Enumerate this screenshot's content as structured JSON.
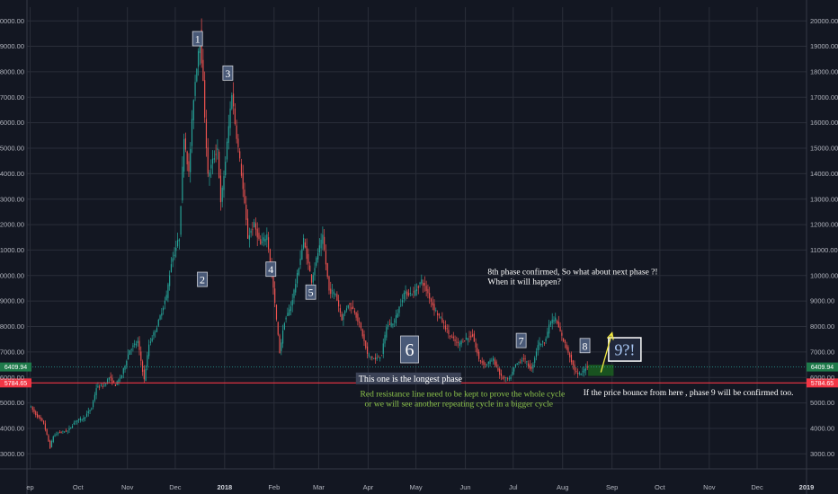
{
  "chart_data": {
    "type": "candlestick",
    "y_axis": {
      "ticks": [
        "3000.00",
        "4000.00",
        "5000.00",
        "6000.00",
        "7000.00",
        "8000.00",
        "9000.00",
        "10000.00",
        "11000.00",
        "12000.00",
        "13000.00",
        "14000.00",
        "15000.00",
        "16000.00",
        "17000.00",
        "18000.00",
        "19000.00",
        "20000.00"
      ],
      "ylim": [
        2500,
        20500
      ],
      "both_sides": true
    },
    "x_axis": {
      "ticks": [
        {
          "label": "ep",
          "date": "2017-09-01",
          "bold": false
        },
        {
          "label": "Oct",
          "date": "2017-10-01",
          "bold": false
        },
        {
          "label": "Nov",
          "date": "2017-11-01",
          "bold": false
        },
        {
          "label": "Dec",
          "date": "2017-12-01",
          "bold": false
        },
        {
          "label": "2018",
          "date": "2018-01-01",
          "bold": true
        },
        {
          "label": "Feb",
          "date": "2018-02-01",
          "bold": false
        },
        {
          "label": "Mar",
          "date": "2018-03-01",
          "bold": false
        },
        {
          "label": "Apr",
          "date": "2018-04-01",
          "bold": false
        },
        {
          "label": "May",
          "date": "2018-05-01",
          "bold": false
        },
        {
          "label": "Jun",
          "date": "2018-06-01",
          "bold": false
        },
        {
          "label": "Jul",
          "date": "2018-07-01",
          "bold": false
        },
        {
          "label": "Aug",
          "date": "2018-08-01",
          "bold": false
        },
        {
          "label": "Sep",
          "date": "2018-09-01",
          "bold": false
        },
        {
          "label": "Oct",
          "date": "2018-10-01",
          "bold": false
        },
        {
          "label": "Nov",
          "date": "2018-11-01",
          "bold": false
        },
        {
          "label": "Dec",
          "date": "2018-12-01",
          "bold": false
        },
        {
          "label": "2019",
          "date": "2019-01-01",
          "bold": true
        }
      ],
      "range": [
        "2017-08-30",
        "2019-01-01"
      ]
    },
    "price_path": [
      [
        "2017-09-01",
        4900
      ],
      [
        "2017-09-05",
        4550
      ],
      [
        "2017-09-10",
        4200
      ],
      [
        "2017-09-14",
        3250
      ],
      [
        "2017-09-16",
        3700
      ],
      [
        "2017-09-20",
        3850
      ],
      [
        "2017-09-25",
        3900
      ],
      [
        "2017-09-30",
        4300
      ],
      [
        "2017-10-05",
        4400
      ],
      [
        "2017-10-10",
        4800
      ],
      [
        "2017-10-13",
        5600
      ],
      [
        "2017-10-18",
        5700
      ],
      [
        "2017-10-21",
        6000
      ],
      [
        "2017-10-25",
        5700
      ],
      [
        "2017-10-29",
        6100
      ],
      [
        "2017-11-03",
        7100
      ],
      [
        "2017-11-08",
        7400
      ],
      [
        "2017-11-12",
        5900
      ],
      [
        "2017-11-15",
        7300
      ],
      [
        "2017-11-20",
        8000
      ],
      [
        "2017-11-26",
        9200
      ],
      [
        "2017-11-29",
        10500
      ],
      [
        "2017-12-04",
        11500
      ],
      [
        "2017-12-07",
        15500
      ],
      [
        "2017-12-10",
        14000
      ],
      [
        "2017-12-13",
        17000
      ],
      [
        "2017-12-17",
        19500
      ],
      [
        "2017-12-19",
        17500
      ],
      [
        "2017-12-22",
        13900
      ],
      [
        "2017-12-25",
        14500
      ],
      [
        "2017-12-28",
        15000
      ],
      [
        "2017-12-30",
        12800
      ],
      [
        "2018-01-02",
        14500
      ],
      [
        "2018-01-06",
        17200
      ],
      [
        "2018-01-08",
        16000
      ],
      [
        "2018-01-12",
        14000
      ],
      [
        "2018-01-16",
        11500
      ],
      [
        "2018-01-20",
        12000
      ],
      [
        "2018-01-24",
        11200
      ],
      [
        "2018-01-28",
        11600
      ],
      [
        "2018-02-01",
        9500
      ],
      [
        "2018-02-05",
        7000
      ],
      [
        "2018-02-08",
        8200
      ],
      [
        "2018-02-12",
        8800
      ],
      [
        "2018-02-16",
        10000
      ],
      [
        "2018-02-20",
        11400
      ],
      [
        "2018-02-25",
        9800
      ],
      [
        "2018-03-01",
        10900
      ],
      [
        "2018-03-04",
        11500
      ],
      [
        "2018-03-08",
        9400
      ],
      [
        "2018-03-12",
        9300
      ],
      [
        "2018-03-16",
        8300
      ],
      [
        "2018-03-20",
        8900
      ],
      [
        "2018-03-24",
        8600
      ],
      [
        "2018-03-28",
        7900
      ],
      [
        "2018-04-01",
        6900
      ],
      [
        "2018-04-06",
        6700
      ],
      [
        "2018-04-10",
        6900
      ],
      [
        "2018-04-13",
        8000
      ],
      [
        "2018-04-18",
        8200
      ],
      [
        "2018-04-24",
        9300
      ],
      [
        "2018-04-30",
        9300
      ],
      [
        "2018-05-05",
        9800
      ],
      [
        "2018-05-09",
        9300
      ],
      [
        "2018-05-13",
        8700
      ],
      [
        "2018-05-18",
        8200
      ],
      [
        "2018-05-23",
        7600
      ],
      [
        "2018-05-28",
        7300
      ],
      [
        "2018-06-01",
        7500
      ],
      [
        "2018-06-06",
        7650
      ],
      [
        "2018-06-10",
        6700
      ],
      [
        "2018-06-14",
        6500
      ],
      [
        "2018-06-19",
        6700
      ],
      [
        "2018-06-24",
        6000
      ],
      [
        "2018-06-29",
        5900
      ],
      [
        "2018-07-03",
        6500
      ],
      [
        "2018-07-08",
        6750
      ],
      [
        "2018-07-13",
        6300
      ],
      [
        "2018-07-17",
        7300
      ],
      [
        "2018-07-21",
        7400
      ],
      [
        "2018-07-25",
        8200
      ],
      [
        "2018-07-28",
        8300
      ],
      [
        "2018-08-01",
        7600
      ],
      [
        "2018-08-05",
        7000
      ],
      [
        "2018-08-09",
        6300
      ],
      [
        "2018-08-11",
        6100
      ],
      [
        "2018-08-14",
        6200
      ],
      [
        "2018-08-16",
        6410
      ]
    ],
    "current_price": {
      "value": 6409.94,
      "label": "6409.94"
    },
    "support_line": {
      "value": 5784.65,
      "label": "5784.65",
      "color": "#f23645"
    },
    "annotations": {
      "phase_labels": [
        {
          "text": "1",
          "date": "2017-12-15",
          "y": 19300
        },
        {
          "text": "2",
          "date": "2017-12-18",
          "y": 9850
        },
        {
          "text": "3",
          "date": "2018-01-03",
          "y": 17950
        },
        {
          "text": "4",
          "date": "2018-01-30",
          "y": 10250
        },
        {
          "text": "5",
          "date": "2018-02-24",
          "y": 9350
        },
        {
          "text": "6",
          "date": "2018-04-27",
          "y": 7100
        },
        {
          "text": "7",
          "date": "2018-07-06",
          "y": 7450
        },
        {
          "text": "8",
          "date": "2018-08-15",
          "y": 7250
        }
      ],
      "next_phase": {
        "text": "9?!",
        "date": "2018-09-09",
        "y": 7100
      },
      "text_blocks": [
        {
          "id": "confirmed",
          "lines": [
            "8th phase confirmed, So what about next phase ?!",
            "When it will happen?"
          ],
          "date": "2018-06-15",
          "y": 10050,
          "color": "#ffffff"
        },
        {
          "id": "longest",
          "lines": [
            "This one is the longest phase"
          ],
          "date": "2018-03-26",
          "y": 5840,
          "color": "#ffffff"
        },
        {
          "id": "resistance",
          "lines": [
            "Red resistance line need to be kept to prove the whole cycle",
            "or we will see another repeating cycle in a bigger cycle"
          ],
          "date": "2018-03-27",
          "y": 5250,
          "color": "#8bc34a"
        },
        {
          "id": "bounce",
          "lines": [
            "If the price bounce from here , phase 9 will be confirmed too."
          ],
          "date": "2018-08-14",
          "y": 5300,
          "color": "#ffffff"
        }
      ],
      "arrow": {
        "from": [
          "2018-08-25",
          6200
        ],
        "to": [
          "2018-09-01",
          7750
        ],
        "color": "#f5ec42"
      },
      "box": {
        "from": [
          "2018-08-17",
          6500
        ],
        "to": [
          "2018-09-02",
          6060
        ],
        "color": "#1b5e20"
      }
    },
    "colors": {
      "up": "#26a69a",
      "down": "#ef5350",
      "background": "#131722",
      "grid": "#2a2e39",
      "axis_text": "#b2b5be"
    }
  }
}
